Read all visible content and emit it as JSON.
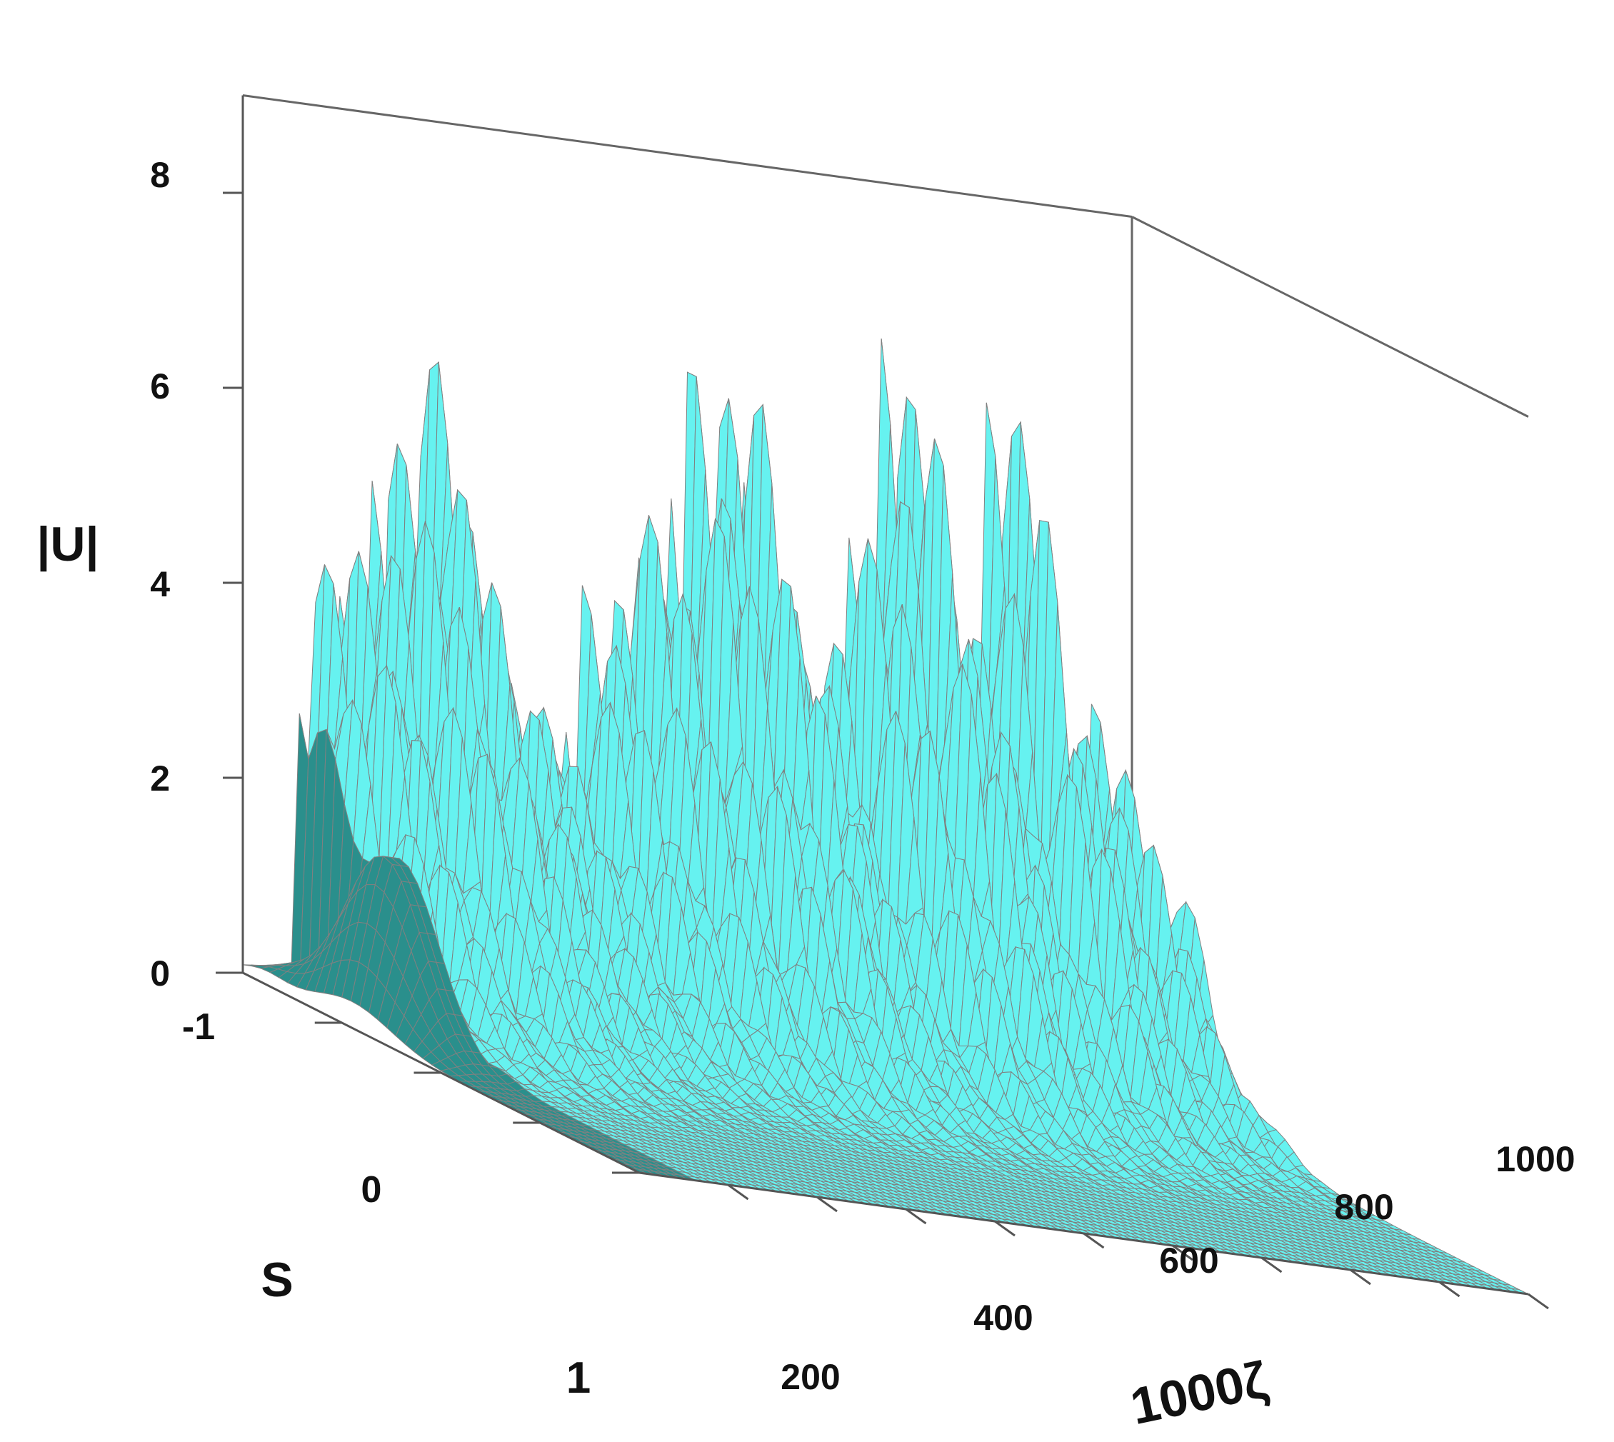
{
  "chart_data": {
    "type": "surface",
    "zlabel": "|U|",
    "ylabel": "S",
    "xlabel": "1000ζ",
    "zticks": [
      "0",
      "2",
      "4",
      "6",
      "8"
    ],
    "yticks": [
      "-1",
      "0",
      "1"
    ],
    "xticks": [
      "200",
      "400",
      "600",
      "800",
      "1000"
    ],
    "zlim": [
      0,
      9
    ],
    "ylim": [
      -1,
      1
    ],
    "xlim": [
      0,
      1000
    ],
    "surface_color": "#66f2f0",
    "mesh_color": "#808080",
    "dark_face_color": "#2a8f8c",
    "initial_pulse": {
      "x_start": 0,
      "peak_amplitude": 1.8
    },
    "x": [
      0,
      75,
      150,
      190,
      230,
      330,
      430,
      540,
      630,
      720,
      800,
      850,
      880,
      930,
      1000
    ],
    "peak_amplitude_along_x": [
      1.8,
      4.5,
      5.5,
      7.6,
      4.8,
      3.2,
      5.7,
      7.8,
      3.6,
      7.9,
      4.6,
      7.9,
      5.0,
      4.1,
      3.9
    ]
  }
}
